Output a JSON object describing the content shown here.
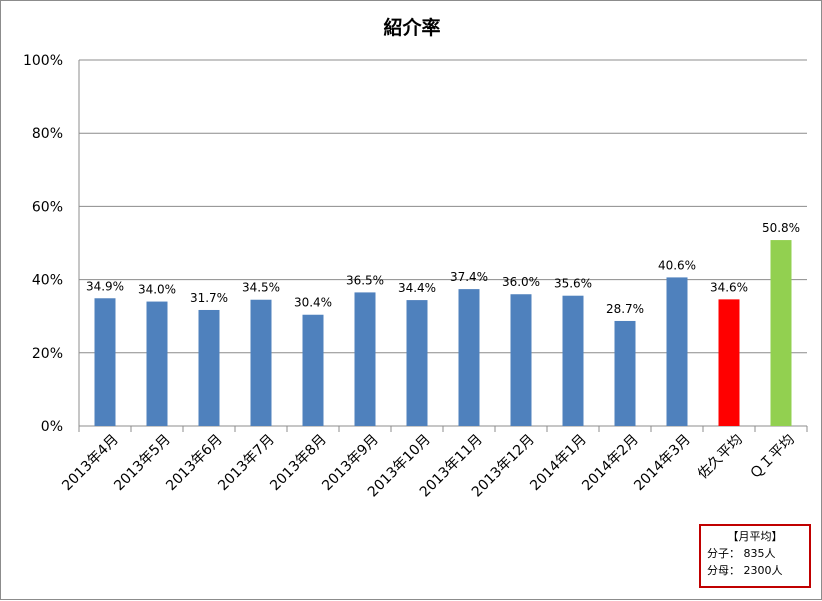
{
  "chart_data": {
    "type": "bar",
    "title": "紹介率",
    "categories": [
      "2013年4月",
      "2013年5月",
      "2013年6月",
      "2013年7月",
      "2013年8月",
      "2013年9月",
      "2013年10月",
      "2013年11月",
      "2013年12月",
      "2014年1月",
      "2014年2月",
      "2014年3月",
      "佐久平均",
      "ＱＩ平均"
    ],
    "values": [
      34.9,
      34.0,
      31.7,
      34.5,
      30.4,
      36.5,
      34.4,
      37.4,
      36.0,
      35.6,
      28.7,
      40.6,
      34.6,
      50.8
    ],
    "value_labels": [
      "34.9%",
      "34.0%",
      "31.7%",
      "34.5%",
      "30.4%",
      "36.5%",
      "34.4%",
      "37.4%",
      "36.0%",
      "35.6%",
      "28.7%",
      "40.6%",
      "34.6%",
      "50.8%"
    ],
    "bar_colors": [
      "#4f81bd",
      "#4f81bd",
      "#4f81bd",
      "#4f81bd",
      "#4f81bd",
      "#4f81bd",
      "#4f81bd",
      "#4f81bd",
      "#4f81bd",
      "#4f81bd",
      "#4f81bd",
      "#4f81bd",
      "#ff0000",
      "#92d050"
    ],
    "ylim": [
      0,
      100
    ],
    "yticks": [
      "0%",
      "20%",
      "40%",
      "60%",
      "80%",
      "100%"
    ],
    "grid": true,
    "xlabel": "",
    "ylabel": ""
  },
  "note": {
    "title": "【月平均】",
    "numerator": "分子：  835人",
    "denominator": "分母：  2300人"
  }
}
